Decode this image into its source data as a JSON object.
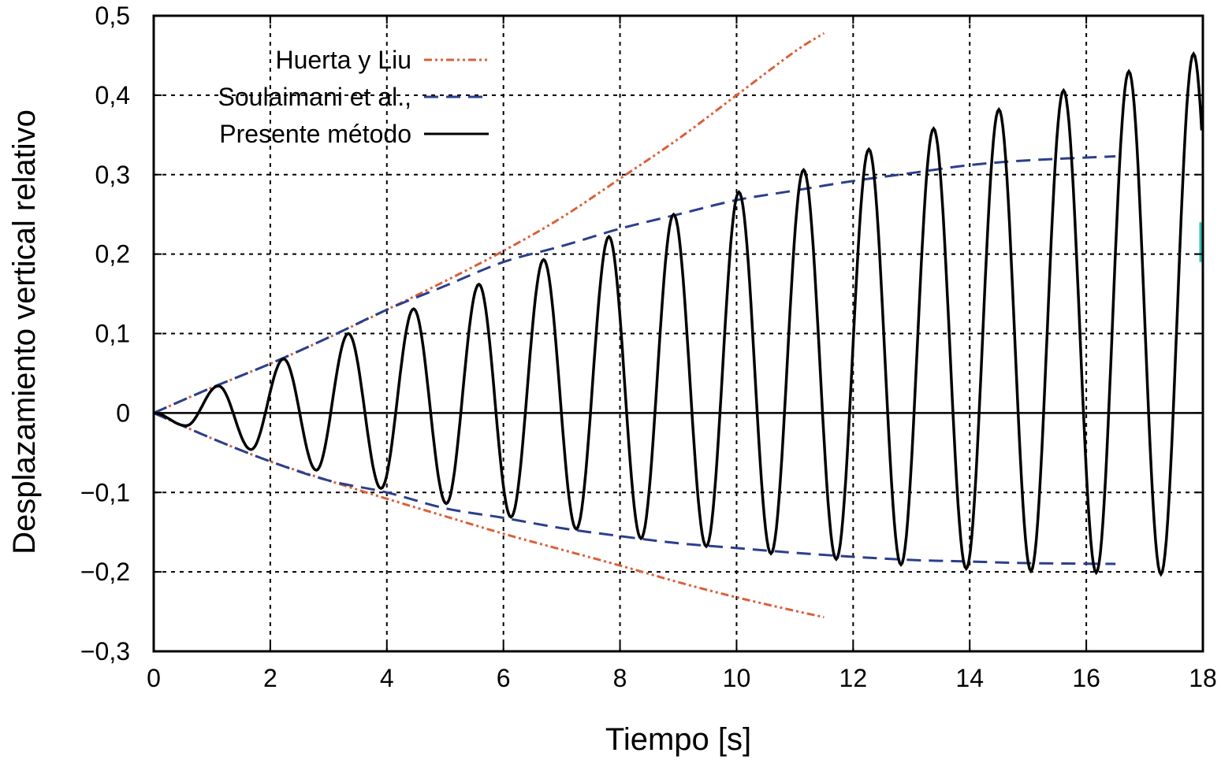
{
  "chart_data": {
    "type": "line",
    "xlabel": "Tiempo [s]",
    "ylabel": "Desplazamiento vertical relativo",
    "xlim": [
      0,
      18
    ],
    "ylim": [
      -0.3,
      0.5
    ],
    "x_ticks": [
      {
        "value": 0,
        "label": "0"
      },
      {
        "value": 2,
        "label": "2"
      },
      {
        "value": 4,
        "label": "4"
      },
      {
        "value": 6,
        "label": "6"
      },
      {
        "value": 8,
        "label": "8"
      },
      {
        "value": 10,
        "label": "10"
      },
      {
        "value": 12,
        "label": "12"
      },
      {
        "value": 14,
        "label": "14"
      },
      {
        "value": 16,
        "label": "16"
      },
      {
        "value": 18,
        "label": "18"
      }
    ],
    "y_ticks": [
      {
        "value": -0.3,
        "label": "−0,3"
      },
      {
        "value": -0.2,
        "label": "−0,2"
      },
      {
        "value": -0.1,
        "label": "−0,1"
      },
      {
        "value": 0,
        "label": "0"
      },
      {
        "value": 0.1,
        "label": "0,1"
      },
      {
        "value": 0.2,
        "label": "0,2"
      },
      {
        "value": 0.3,
        "label": "0,3"
      },
      {
        "value": 0.4,
        "label": "0,4"
      },
      {
        "value": 0.5,
        "label": "0,5"
      }
    ],
    "grid": true,
    "legend_position": "top-left",
    "series": [
      {
        "name": "Huerta y Liu",
        "style": "dash-dot-dot",
        "color": "#d9603b",
        "segments": [
          {
            "x": [
              0,
              1,
              2,
              3,
              4,
              5,
              6,
              7,
              8,
              9,
              10,
              11,
              11.5
            ],
            "y": [
              0,
              0.032,
              0.062,
              0.095,
              0.13,
              0.166,
              0.204,
              0.246,
              0.295,
              0.345,
              0.4,
              0.455,
              0.478
            ]
          },
          {
            "x": [
              0,
              1,
              2,
              3,
              4,
              5,
              6,
              7,
              8,
              9,
              10,
              11,
              11.5
            ],
            "y": [
              0,
              -0.032,
              -0.061,
              -0.085,
              -0.108,
              -0.13,
              -0.152,
              -0.172,
              -0.192,
              -0.213,
              -0.232,
              -0.249,
              -0.257
            ]
          }
        ]
      },
      {
        "name": "Soulaimani et al.,",
        "style": "dashed",
        "color": "#2b3f8c",
        "segments": [
          {
            "x": [
              0,
              1,
              2,
              3,
              4,
              5,
              6,
              7,
              8,
              9,
              10,
              11,
              12,
              13,
              14,
              15,
              16.5
            ],
            "y": [
              0,
              0.032,
              0.062,
              0.095,
              0.13,
              0.16,
              0.19,
              0.21,
              0.232,
              0.25,
              0.268,
              0.28,
              0.292,
              0.302,
              0.312,
              0.318,
              0.323
            ]
          },
          {
            "x": [
              0,
              1,
              2,
              3,
              4,
              5,
              6,
              7,
              8,
              9,
              10,
              11,
              12,
              13,
              14,
              15,
              16.5
            ],
            "y": [
              0,
              -0.032,
              -0.061,
              -0.085,
              -0.1,
              -0.12,
              -0.132,
              -0.145,
              -0.155,
              -0.164,
              -0.17,
              -0.176,
              -0.181,
              -0.185,
              -0.187,
              -0.189,
              -0.19
            ]
          }
        ]
      },
      {
        "name": "Presente método",
        "style": "solid",
        "color": "#000000",
        "period_s": 1.115,
        "peaks": {
          "x": [
            0.555,
            1.11,
            1.67,
            2.23,
            2.79,
            3.34,
            3.9,
            4.46,
            5.02,
            5.58,
            6.13,
            6.69,
            7.25,
            7.81,
            8.36,
            8.92,
            9.48,
            10.04,
            10.59,
            11.15,
            11.71,
            12.27,
            12.82,
            13.38,
            13.94,
            14.5,
            15.05,
            15.61,
            16.17,
            16.73,
            17.28,
            17.84
          ],
          "y": [
            -0.016,
            0.034,
            -0.046,
            0.068,
            -0.072,
            0.1,
            -0.095,
            0.131,
            -0.114,
            0.162,
            -0.131,
            0.193,
            -0.146,
            0.222,
            -0.158,
            0.25,
            -0.168,
            0.278,
            -0.177,
            0.306,
            -0.184,
            0.332,
            -0.191,
            0.358,
            -0.196,
            0.382,
            -0.199,
            0.406,
            -0.201,
            0.43,
            -0.203,
            0.452
          ]
        },
        "x_end": 18
      }
    ],
    "annotations": [
      {
        "type": "segment",
        "color": "#2ec4b6",
        "x": 18,
        "y": [
          0.19,
          0.24
        ]
      }
    ]
  }
}
